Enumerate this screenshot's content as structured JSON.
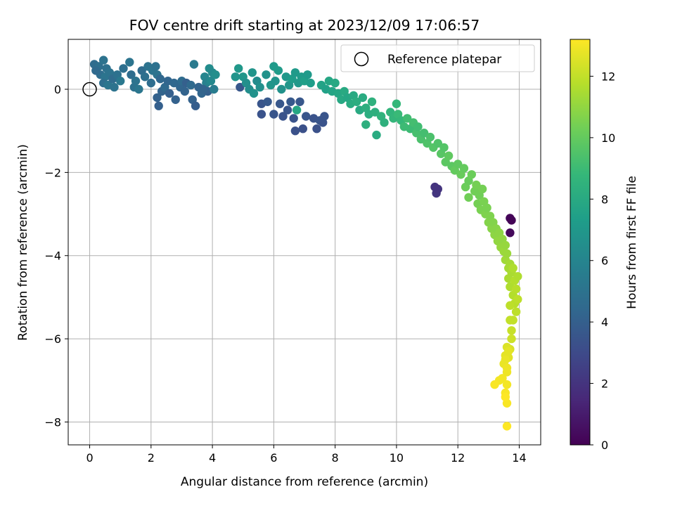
{
  "chart_data": {
    "type": "scatter",
    "title": "FOV centre drift starting at 2023/12/09 17:06:57",
    "xlabel": "Angular distance from reference (arcmin)",
    "ylabel": "Rotation from reference (arcmin)",
    "xlim": [
      -0.7,
      14.7
    ],
    "ylim": [
      -8.55,
      1.2
    ],
    "x_ticks": [
      0,
      2,
      4,
      6,
      8,
      10,
      12,
      14
    ],
    "y_ticks": [
      0,
      -2,
      -4,
      -6,
      -8
    ],
    "x_tick_labels": [
      "0",
      "2",
      "4",
      "6",
      "8",
      "10",
      "12",
      "14"
    ],
    "y_tick_labels": [
      "0",
      "−2",
      "−4",
      "−6",
      "−8"
    ],
    "grid": true,
    "legend": {
      "placement": "top-right",
      "entries": [
        "Reference platepar"
      ]
    },
    "reference_point": {
      "x": 0,
      "y": 0,
      "label": "Reference platepar"
    },
    "colorbar": {
      "label": "Hours from first FF file",
      "range": [
        0,
        13.2
      ],
      "ticks": [
        0,
        2,
        4,
        6,
        8,
        10,
        12
      ],
      "tick_labels": [
        "0",
        "2",
        "4",
        "6",
        "8",
        "10",
        "12"
      ],
      "colormap": "viridis",
      "colors": [
        "#440154",
        "#482878",
        "#3e4989",
        "#31688e",
        "#26828e",
        "#1f9e89",
        "#35b779",
        "#6ece58",
        "#b5de2b",
        "#fde725"
      ]
    },
    "points": [
      [
        0.15,
        0.6,
        4.6
      ],
      [
        0.3,
        0.55,
        4.8
      ],
      [
        0.45,
        0.7,
        5.0
      ],
      [
        0.55,
        0.5,
        4.9
      ],
      [
        0.35,
        0.35,
        4.7
      ],
      [
        0.5,
        0.3,
        5.1
      ],
      [
        0.65,
        0.4,
        5.0
      ],
      [
        0.45,
        0.15,
        4.8
      ],
      [
        0.6,
        0.1,
        5.2
      ],
      [
        0.75,
        0.25,
        4.6
      ],
      [
        0.2,
        0.45,
        4.5
      ],
      [
        0.8,
        0.05,
        5.0
      ],
      [
        0.9,
        0.35,
        4.9
      ],
      [
        1.0,
        0.2,
        5.3
      ],
      [
        1.1,
        0.5,
        4.8
      ],
      [
        1.3,
        0.65,
        5.1
      ],
      [
        1.35,
        0.35,
        4.7
      ],
      [
        1.45,
        0.05,
        4.9
      ],
      [
        1.5,
        0.2,
        5.0
      ],
      [
        1.6,
        0.0,
        5.2
      ],
      [
        1.7,
        0.45,
        4.6
      ],
      [
        1.8,
        0.3,
        4.8
      ],
      [
        1.9,
        0.55,
        5.0
      ],
      [
        2.0,
        0.15,
        4.7
      ],
      [
        2.05,
        0.45,
        5.1
      ],
      [
        2.15,
        0.55,
        4.9
      ],
      [
        2.2,
        0.35,
        5.0
      ],
      [
        2.3,
        0.25,
        4.4
      ],
      [
        2.2,
        -0.2,
        4.1
      ],
      [
        2.25,
        -0.4,
        4.0
      ],
      [
        2.35,
        -0.05,
        4.2
      ],
      [
        2.45,
        0.05,
        4.5
      ],
      [
        2.55,
        0.2,
        4.3
      ],
      [
        2.6,
        -0.1,
        4.0
      ],
      [
        2.75,
        0.15,
        4.4
      ],
      [
        2.8,
        -0.25,
        4.1
      ],
      [
        2.95,
        0.05,
        4.3
      ],
      [
        3.0,
        0.2,
        4.6
      ],
      [
        3.1,
        -0.05,
        4.2
      ],
      [
        3.15,
        0.15,
        4.0
      ],
      [
        3.3,
        0.1,
        4.5
      ],
      [
        3.35,
        -0.25,
        4.1
      ],
      [
        3.4,
        0.6,
        5.4
      ],
      [
        3.45,
        -0.4,
        3.9
      ],
      [
        3.55,
        0.05,
        4.2
      ],
      [
        3.65,
        -0.1,
        4.3
      ],
      [
        3.75,
        0.3,
        6.0
      ],
      [
        3.8,
        0.15,
        5.8
      ],
      [
        3.85,
        -0.05,
        4.0
      ],
      [
        3.9,
        0.5,
        6.4
      ],
      [
        3.95,
        0.2,
        6.2
      ],
      [
        4.0,
        0.4,
        6.3
      ],
      [
        4.05,
        0.0,
        5.5
      ],
      [
        4.1,
        0.35,
        6.5
      ],
      [
        3.7,
        0.0,
        4.2
      ],
      [
        4.75,
        0.3,
        6.8
      ],
      [
        4.85,
        0.5,
        7.0
      ],
      [
        4.9,
        0.05,
        3.6
      ],
      [
        5.0,
        0.3,
        6.9
      ],
      [
        5.1,
        0.15,
        6.6
      ],
      [
        5.2,
        0.0,
        6.5
      ],
      [
        5.3,
        0.4,
        6.8
      ],
      [
        5.35,
        -0.1,
        6.7
      ],
      [
        5.45,
        0.2,
        6.4
      ],
      [
        5.55,
        0.05,
        6.6
      ],
      [
        5.6,
        -0.35,
        3.5
      ],
      [
        5.6,
        -0.6,
        3.4
      ],
      [
        5.75,
        0.35,
        6.7
      ],
      [
        5.8,
        -0.3,
        3.7
      ],
      [
        5.9,
        0.1,
        6.9
      ],
      [
        6.0,
        0.55,
        7.1
      ],
      [
        6.0,
        -0.6,
        3.5
      ],
      [
        6.05,
        0.2,
        6.8
      ],
      [
        6.15,
        0.45,
        7.2
      ],
      [
        6.2,
        -0.35,
        3.6
      ],
      [
        6.25,
        0.0,
        6.7
      ],
      [
        6.3,
        -0.65,
        3.4
      ],
      [
        6.4,
        0.3,
        7.0
      ],
      [
        6.45,
        -0.5,
        3.5
      ],
      [
        6.5,
        0.1,
        6.9
      ],
      [
        6.55,
        -0.3,
        3.7
      ],
      [
        6.6,
        0.25,
        7.3
      ],
      [
        6.65,
        -0.7,
        3.4
      ],
      [
        6.7,
        0.4,
        7.1
      ],
      [
        6.75,
        -0.5,
        7.8
      ],
      [
        6.8,
        0.15,
        7.0
      ],
      [
        6.85,
        -0.3,
        3.6
      ],
      [
        6.9,
        0.3,
        7.2
      ],
      [
        6.95,
        -0.95,
        3.3
      ],
      [
        7.0,
        0.2,
        7.4
      ],
      [
        7.05,
        -0.65,
        3.5
      ],
      [
        7.1,
        0.35,
        7.1
      ],
      [
        7.2,
        0.15,
        7.3
      ],
      [
        7.3,
        -0.7,
        3.4
      ],
      [
        7.4,
        -0.95,
        3.3
      ],
      [
        7.5,
        -0.75,
        3.5
      ],
      [
        7.55,
        0.1,
        7.6
      ],
      [
        7.6,
        -0.8,
        3.4
      ],
      [
        7.65,
        -0.65,
        3.5
      ],
      [
        7.7,
        0.0,
        7.5
      ],
      [
        6.7,
        -1.0,
        3.3
      ],
      [
        7.8,
        0.2,
        7.8
      ],
      [
        7.9,
        -0.05,
        7.7
      ],
      [
        8.0,
        0.15,
        7.9
      ],
      [
        8.1,
        -0.1,
        7.8
      ],
      [
        8.2,
        -0.25,
        7.9
      ],
      [
        8.3,
        -0.05,
        8.0
      ],
      [
        8.4,
        -0.2,
        7.8
      ],
      [
        8.5,
        -0.35,
        8.1
      ],
      [
        8.6,
        -0.15,
        8.0
      ],
      [
        8.7,
        -0.3,
        8.2
      ],
      [
        8.8,
        -0.5,
        8.0
      ],
      [
        8.9,
        -0.2,
        8.1
      ],
      [
        9.0,
        -0.45,
        8.3
      ],
      [
        9.1,
        -0.6,
        8.2
      ],
      [
        9.2,
        -0.3,
        8.4
      ],
      [
        9.3,
        -0.55,
        8.3
      ],
      [
        9.35,
        -1.1,
        8.1
      ],
      [
        9.5,
        -0.65,
        8.5
      ],
      [
        9.0,
        -0.85,
        8.3
      ],
      [
        9.6,
        -0.8,
        8.4
      ],
      [
        9.8,
        -0.55,
        8.6
      ],
      [
        9.9,
        -0.7,
        8.7
      ],
      [
        10.0,
        -0.35,
        8.8
      ],
      [
        10.05,
        -0.6,
        8.9
      ],
      [
        10.15,
        -0.75,
        8.8
      ],
      [
        10.25,
        -0.9,
        9.0
      ],
      [
        10.35,
        -0.7,
        9.1
      ],
      [
        10.45,
        -0.95,
        9.0
      ],
      [
        10.55,
        -0.8,
        9.2
      ],
      [
        10.65,
        -1.05,
        9.3
      ],
      [
        10.7,
        -0.9,
        9.1
      ],
      [
        10.8,
        -1.2,
        9.4
      ],
      [
        10.9,
        -1.05,
        9.2
      ],
      [
        11.0,
        -1.3,
        9.5
      ],
      [
        11.1,
        -1.15,
        9.4
      ],
      [
        11.2,
        -1.4,
        9.6
      ],
      [
        11.25,
        -2.35,
        2.0
      ],
      [
        11.3,
        -2.5,
        2.1
      ],
      [
        11.35,
        -2.4,
        2.0
      ],
      [
        11.35,
        -1.3,
        9.5
      ],
      [
        11.45,
        -1.55,
        9.7
      ],
      [
        11.55,
        -1.4,
        9.6
      ],
      [
        11.6,
        -1.75,
        9.8
      ],
      [
        11.7,
        -1.6,
        9.9
      ],
      [
        11.8,
        -1.85,
        9.8
      ],
      [
        11.9,
        -1.95,
        10.0
      ],
      [
        12.0,
        -1.8,
        9.9
      ],
      [
        12.1,
        -2.05,
        10.1
      ],
      [
        12.2,
        -1.9,
        10.0
      ],
      [
        12.25,
        -2.35,
        10.2
      ],
      [
        12.35,
        -2.2,
        10.1
      ],
      [
        12.35,
        -2.6,
        10.3
      ],
      [
        12.45,
        -2.05,
        10.2
      ],
      [
        12.55,
        -2.45,
        10.3
      ],
      [
        12.6,
        -2.3,
        10.4
      ],
      [
        12.65,
        -2.75,
        10.4
      ],
      [
        12.7,
        -2.55,
        10.3
      ],
      [
        12.75,
        -2.9,
        10.5
      ],
      [
        12.8,
        -2.4,
        10.4
      ],
      [
        12.85,
        -2.7,
        10.5
      ],
      [
        12.9,
        -3.0,
        10.6
      ],
      [
        12.95,
        -2.85,
        10.5
      ],
      [
        13.0,
        -3.2,
        10.7
      ],
      [
        13.05,
        -3.05,
        10.6
      ],
      [
        13.1,
        -3.35,
        10.8
      ],
      [
        13.15,
        -3.2,
        10.7
      ],
      [
        13.2,
        -3.5,
        10.9
      ],
      [
        13.25,
        -3.35,
        10.8
      ],
      [
        13.3,
        -3.65,
        11.0
      ],
      [
        13.35,
        -3.45,
        10.9
      ],
      [
        13.4,
        -3.8,
        11.1
      ],
      [
        13.45,
        -3.6,
        11.0
      ],
      [
        13.5,
        -3.9,
        11.2
      ],
      [
        13.55,
        -3.75,
        11.1
      ],
      [
        13.55,
        -4.1,
        11.3
      ],
      [
        13.6,
        -3.95,
        11.2
      ],
      [
        13.65,
        -4.3,
        11.4
      ],
      [
        13.65,
        -4.55,
        11.5
      ],
      [
        13.7,
        -4.2,
        11.4
      ],
      [
        13.7,
        -3.1,
        0.2
      ],
      [
        13.75,
        -3.15,
        0.1
      ],
      [
        13.7,
        -3.45,
        0.3
      ],
      [
        13.7,
        -4.75,
        11.6
      ],
      [
        13.75,
        -4.4,
        11.5
      ],
      [
        13.8,
        -4.95,
        11.7
      ],
      [
        13.8,
        -4.3,
        11.6
      ],
      [
        13.85,
        -5.15,
        11.8
      ],
      [
        13.85,
        -4.6,
        11.7
      ],
      [
        13.9,
        -5.35,
        11.9
      ],
      [
        13.9,
        -4.8,
        11.8
      ],
      [
        13.95,
        -5.05,
        11.9
      ],
      [
        13.95,
        -4.5,
        11.6
      ],
      [
        13.8,
        -5.55,
        12.0
      ],
      [
        13.75,
        -5.8,
        12.1
      ],
      [
        13.7,
        -5.55,
        12.0
      ],
      [
        13.75,
        -6.0,
        12.2
      ],
      [
        13.7,
        -6.25,
        12.4
      ],
      [
        13.65,
        -6.45,
        12.6
      ],
      [
        13.6,
        -6.2,
        12.5
      ],
      [
        13.55,
        -6.4,
        12.7
      ],
      [
        13.5,
        -6.6,
        12.8
      ],
      [
        13.6,
        -6.7,
        12.9
      ],
      [
        13.55,
        -6.5,
        12.8
      ],
      [
        13.65,
        -6.3,
        12.7
      ],
      [
        13.45,
        -6.95,
        13.0
      ],
      [
        13.35,
        -7.0,
        13.0
      ],
      [
        13.2,
        -7.1,
        13.1
      ],
      [
        13.6,
        -7.1,
        13.0
      ],
      [
        13.55,
        -7.3,
        13.1
      ],
      [
        13.6,
        -7.55,
        13.1
      ],
      [
        13.55,
        -7.4,
        13.2
      ],
      [
        13.6,
        -6.8,
        12.9
      ],
      [
        13.6,
        -8.1,
        13.2
      ],
      [
        13.7,
        -5.2,
        11.9
      ]
    ]
  }
}
